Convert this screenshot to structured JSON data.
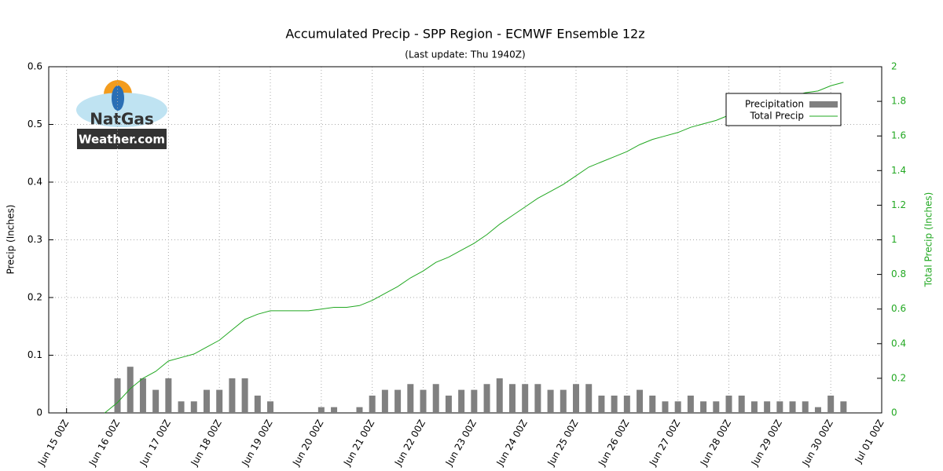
{
  "chart_data": {
    "type": "bar_line",
    "title": "Accumulated Precip - SPP Region - ECMWF Ensemble 12z",
    "subtitle": "(Last update: Thu 1940Z)",
    "y_label": "Precip (Inches)",
    "y2_label": "Total Precip (Inches)",
    "logo": {
      "line1": "NatGas",
      "line2": "Weather.com"
    },
    "xlim": [
      14.65,
      31
    ],
    "xticks": [
      {
        "value": 15,
        "label": "Jun 15 00Z"
      },
      {
        "value": 16,
        "label": "Jun 16 00Z"
      },
      {
        "value": 17,
        "label": "Jun 17 00Z"
      },
      {
        "value": 18,
        "label": "Jun 18 00Z"
      },
      {
        "value": 19,
        "label": "Jun 19 00Z"
      },
      {
        "value": 20,
        "label": "Jun 20 00Z"
      },
      {
        "value": 21,
        "label": "Jun 21 00Z"
      },
      {
        "value": 22,
        "label": "Jun 22 00Z"
      },
      {
        "value": 23,
        "label": "Jun 23 00Z"
      },
      {
        "value": 24,
        "label": "Jun 24 00Z"
      },
      {
        "value": 25,
        "label": "Jun 25 00Z"
      },
      {
        "value": 26,
        "label": "Jun 26 00Z"
      },
      {
        "value": 27,
        "label": "Jun 27 00Z"
      },
      {
        "value": 28,
        "label": "Jun 28 00Z"
      },
      {
        "value": 29,
        "label": "Jun 29 00Z"
      },
      {
        "value": 30,
        "label": "Jun 30 00Z"
      },
      {
        "value": 31,
        "label": "Jul 01 00Z"
      }
    ],
    "ylim": [
      0,
      0.6
    ],
    "yticks": [
      0,
      0.1,
      0.2,
      0.3,
      0.4,
      0.5,
      0.6
    ],
    "y2lim": [
      0,
      2
    ],
    "y2ticks": [
      0,
      0.2,
      0.4,
      0.6,
      0.8,
      1,
      1.2,
      1.4,
      1.6,
      1.8,
      2
    ],
    "grid": true,
    "legend": "upper right",
    "x": [
      15.75,
      16,
      16.25,
      16.5,
      16.75,
      17,
      17.25,
      17.5,
      17.75,
      18,
      18.25,
      18.5,
      18.75,
      19,
      19.25,
      19.5,
      19.75,
      20,
      20.25,
      20.5,
      20.75,
      21,
      21.25,
      21.5,
      21.75,
      22,
      22.25,
      22.5,
      22.75,
      23,
      23.25,
      23.5,
      23.75,
      24,
      24.25,
      24.5,
      24.75,
      25,
      25.25,
      25.5,
      25.75,
      26,
      26.25,
      26.5,
      26.75,
      27,
      27.25,
      27.5,
      27.75,
      28,
      28.25,
      28.5,
      28.75,
      29,
      29.25,
      29.5,
      29.75,
      30,
      30.25
    ],
    "series": [
      {
        "name": "Precipitation",
        "type": "bar",
        "color": "#808080",
        "values": [
          null,
          0.06,
          0.08,
          0.06,
          0.04,
          0.06,
          0.02,
          0.02,
          0.04,
          0.04,
          0.06,
          0.06,
          0.03,
          0.02,
          0,
          0,
          0,
          0.01,
          0.01,
          0,
          0.01,
          0.03,
          0.04,
          0.04,
          0.05,
          0.04,
          0.05,
          0.03,
          0.04,
          0.04,
          0.05,
          0.06,
          0.05,
          0.05,
          0.05,
          0.04,
          0.04,
          0.05,
          0.05,
          0.03,
          0.03,
          0.03,
          0.04,
          0.03,
          0.02,
          0.02,
          0.03,
          0.02,
          0.02,
          0.03,
          0.03,
          0.02,
          0.02,
          0.02,
          0.02,
          0.02,
          0.01,
          0.03,
          0.02
        ]
      },
      {
        "name": "Total Precip",
        "type": "line",
        "axis": "y2",
        "color": "#22a822",
        "values": [
          0,
          0.06,
          0.14,
          0.2,
          0.24,
          0.3,
          0.32,
          0.34,
          0.38,
          0.42,
          0.48,
          0.54,
          0.57,
          0.59,
          0.59,
          0.59,
          0.59,
          0.6,
          0.61,
          0.61,
          0.62,
          0.65,
          0.69,
          0.73,
          0.78,
          0.82,
          0.87,
          0.9,
          0.94,
          0.98,
          1.03,
          1.09,
          1.14,
          1.19,
          1.24,
          1.28,
          1.32,
          1.37,
          1.42,
          1.45,
          1.48,
          1.51,
          1.55,
          1.58,
          1.6,
          1.62,
          1.65,
          1.67,
          1.69,
          1.72,
          1.75,
          1.77,
          1.79,
          1.81,
          1.83,
          1.85,
          1.86,
          1.89,
          1.91
        ]
      }
    ]
  }
}
